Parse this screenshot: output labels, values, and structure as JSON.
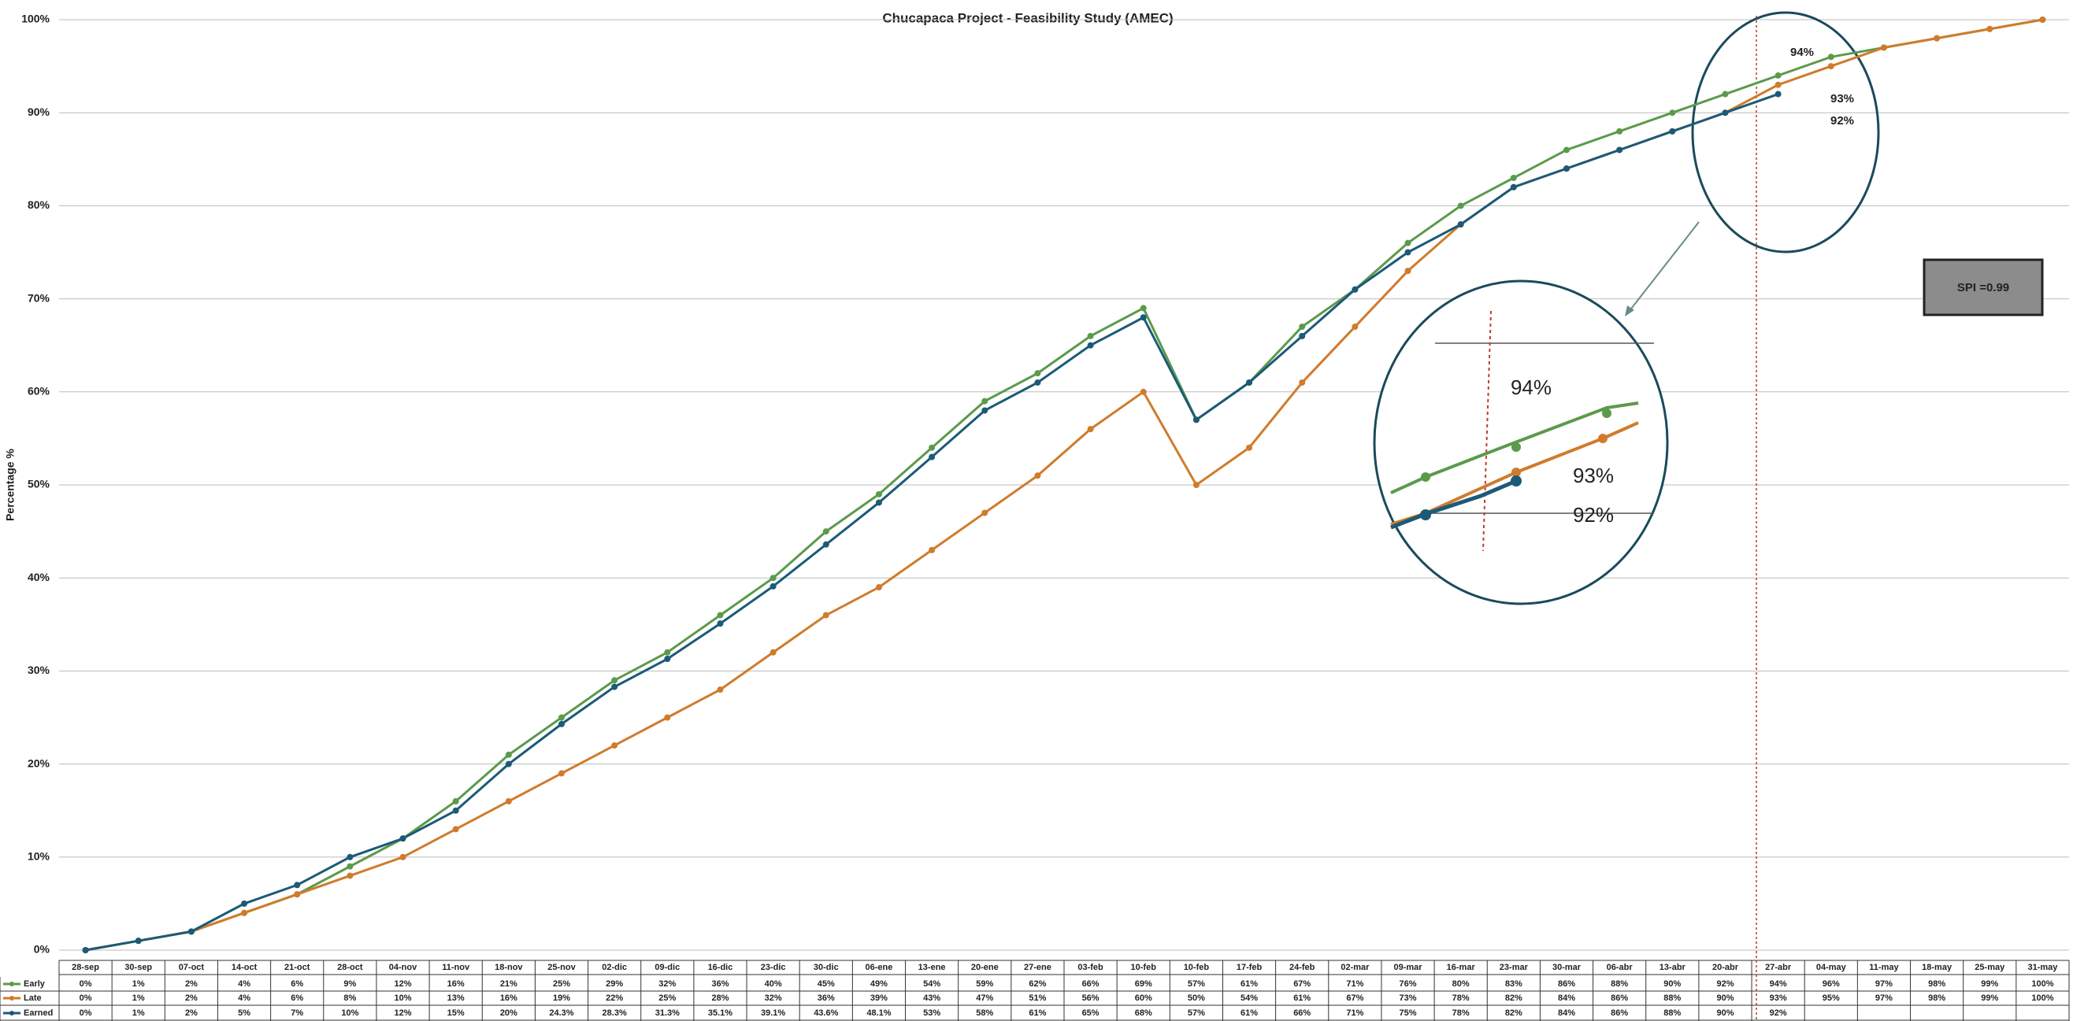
{
  "chart_data": {
    "type": "line",
    "title": "Chucapaca Project - Feasibility Study (AMEC)",
    "y_label": "Percentage %",
    "categories": [
      "28-sep",
      "30-sep",
      "07-oct",
      "14-oct",
      "21-oct",
      "28-oct",
      "04-nov",
      "11-nov",
      "18-nov",
      "25-nov",
      "02-dic",
      "09-dic",
      "16-dic",
      "23-dic",
      "30-dic",
      "06-ene",
      "13-ene",
      "20-ene",
      "27-ene",
      "03-feb",
      "10-feb",
      "10-feb",
      "17-feb",
      "24-feb",
      "02-mar",
      "09-mar",
      "16-mar",
      "23-mar",
      "30-mar",
      "06-abr",
      "13-abr",
      "20-abr",
      "27-abr",
      "04-may",
      "11-may",
      "18-may",
      "25-may",
      "31-may"
    ],
    "series": [
      {
        "name": "Early",
        "color": "#5b9a4b",
        "values": [
          0,
          1,
          2,
          4,
          6,
          9,
          12,
          16,
          21,
          25,
          29,
          32,
          36,
          40,
          45,
          49,
          54,
          59,
          62,
          66,
          69,
          57,
          61,
          67,
          71,
          76,
          80,
          83,
          86,
          88,
          90,
          92,
          94,
          96,
          97,
          98,
          99,
          100
        ],
        "value_labels": [
          "0%",
          "1%",
          "2%",
          "4%",
          "6%",
          "9%",
          "12%",
          "16%",
          "21%",
          "25%",
          "29%",
          "32%",
          "36%",
          "40%",
          "45%",
          "49%",
          "54%",
          "59%",
          "62%",
          "66%",
          "69%",
          "57%",
          "61%",
          "67%",
          "71%",
          "76%",
          "80%",
          "83%",
          "86%",
          "88%",
          "90%",
          "92%",
          "94%",
          "96%",
          "97%",
          "98%",
          "99%",
          "100%"
        ]
      },
      {
        "name": "Late",
        "color": "#d07b2c",
        "values": [
          0,
          1,
          2,
          4,
          6,
          8,
          10,
          13,
          16,
          19,
          22,
          25,
          28,
          32,
          36,
          39,
          43,
          47,
          51,
          56,
          60,
          50,
          54,
          61,
          67,
          73,
          78,
          82,
          84,
          86,
          88,
          90,
          93,
          95,
          97,
          98,
          99,
          100
        ],
        "value_labels": [
          "0%",
          "1%",
          "2%",
          "4%",
          "6%",
          "8%",
          "10%",
          "13%",
          "16%",
          "19%",
          "22%",
          "25%",
          "28%",
          "32%",
          "36%",
          "39%",
          "43%",
          "47%",
          "51%",
          "56%",
          "60%",
          "50%",
          "54%",
          "61%",
          "67%",
          "73%",
          "78%",
          "82%",
          "84%",
          "86%",
          "88%",
          "90%",
          "93%",
          "95%",
          "97%",
          "98%",
          "99%",
          "100%"
        ]
      },
      {
        "name": "Earned",
        "color": "#1b5a78",
        "values": [
          0,
          1,
          2,
          5,
          7,
          10,
          12,
          15,
          20,
          24.3,
          28.3,
          31.3,
          35.1,
          39.1,
          43.6,
          48.1,
          53,
          58,
          61,
          65,
          68,
          57,
          61,
          66,
          71,
          75,
          78,
          82,
          84,
          86,
          88,
          90,
          92,
          null,
          null,
          null,
          null,
          null
        ],
        "value_labels": [
          "0%",
          "1%",
          "2%",
          "5%",
          "7%",
          "10%",
          "12%",
          "15%",
          "20%",
          "24.3%",
          "28.3%",
          "31.3%",
          "35.1%",
          "39.1%",
          "43.6%",
          "48.1%",
          "53%",
          "58%",
          "61%",
          "65%",
          "68%",
          "57%",
          "61%",
          "66%",
          "71%",
          "75%",
          "78%",
          "82%",
          "84%",
          "86%",
          "88%",
          "90%",
          "92%",
          null,
          null,
          null,
          null,
          null
        ]
      }
    ],
    "ylim": [
      0,
      100
    ],
    "yticks": [
      {
        "value": 0,
        "label": "0%"
      },
      {
        "value": 10,
        "label": "10%"
      },
      {
        "value": 20,
        "label": "20%"
      },
      {
        "value": 30,
        "label": "30%"
      },
      {
        "value": 40,
        "label": "40%"
      },
      {
        "value": 50,
        "label": "50%"
      },
      {
        "value": 60,
        "label": "60%"
      },
      {
        "value": 70,
        "label": "70%"
      },
      {
        "value": 80,
        "label": "80%"
      },
      {
        "value": 90,
        "label": "90%"
      },
      {
        "value": 100,
        "label": "100%"
      }
    ],
    "grid": true,
    "annotations": [
      "94%",
      "93%",
      "92%",
      "SPI =0.99"
    ]
  }
}
